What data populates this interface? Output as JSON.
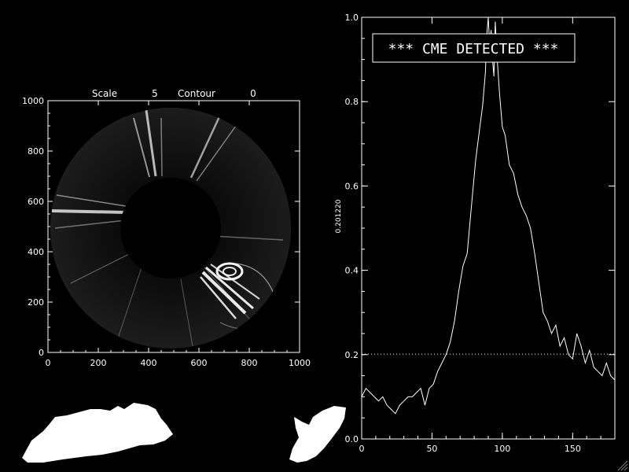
{
  "colors": {
    "background": "#000000",
    "foreground": "#ffffff"
  },
  "left_panel": {
    "scale_label": "Scale",
    "scale_value": "5",
    "contour_label": "Contour",
    "contour_value": "0"
  },
  "right_panel": {
    "banner": "*** CME DETECTED ***",
    "ylabel": "0.201220"
  },
  "chart_data": [
    {
      "type": "image",
      "title": "",
      "xlim": [
        0,
        1000
      ],
      "ylim": [
        0,
        1000
      ],
      "x_ticks": [
        "0",
        "200",
        "400",
        "600",
        "800",
        "1000"
      ],
      "y_ticks": [
        "0",
        "200",
        "400",
        "600",
        "800",
        "1000"
      ],
      "grid": false
    },
    {
      "type": "line",
      "title": "",
      "xlabel": "",
      "ylabel": "0.201220",
      "xlim": [
        0,
        180
      ],
      "ylim": [
        0,
        1.0
      ],
      "x_ticks": [
        "0",
        "50",
        "100",
        "150"
      ],
      "y_ticks": [
        "0.0",
        "0.2",
        "0.4",
        "0.6",
        "0.8",
        "1.0"
      ],
      "threshold": 0.20122,
      "grid": false,
      "x": [
        0,
        3,
        6,
        9,
        12,
        15,
        18,
        21,
        24,
        27,
        30,
        33,
        36,
        39,
        42,
        45,
        48,
        51,
        54,
        57,
        60,
        63,
        66,
        69,
        72,
        75,
        78,
        81,
        84,
        86,
        88,
        89,
        90,
        91,
        92,
        93,
        94,
        95,
        96,
        98,
        100,
        102,
        105,
        108,
        111,
        114,
        117,
        120,
        123,
        126,
        129,
        132,
        135,
        138,
        141,
        144,
        147,
        150,
        153,
        156,
        159,
        162,
        165,
        168,
        171,
        174,
        177,
        180
      ],
      "values": [
        0.1,
        0.12,
        0.11,
        0.1,
        0.09,
        0.1,
        0.08,
        0.07,
        0.06,
        0.08,
        0.09,
        0.1,
        0.1,
        0.11,
        0.12,
        0.08,
        0.12,
        0.13,
        0.16,
        0.18,
        0.2,
        0.23,
        0.28,
        0.35,
        0.41,
        0.44,
        0.55,
        0.66,
        0.74,
        0.79,
        0.87,
        0.96,
        1.0,
        0.93,
        0.97,
        0.9,
        0.86,
        0.99,
        0.92,
        0.82,
        0.74,
        0.72,
        0.65,
        0.63,
        0.58,
        0.55,
        0.53,
        0.5,
        0.44,
        0.37,
        0.3,
        0.28,
        0.25,
        0.27,
        0.22,
        0.24,
        0.2,
        0.19,
        0.25,
        0.22,
        0.18,
        0.21,
        0.17,
        0.16,
        0.15,
        0.18,
        0.15,
        0.14
      ]
    }
  ]
}
